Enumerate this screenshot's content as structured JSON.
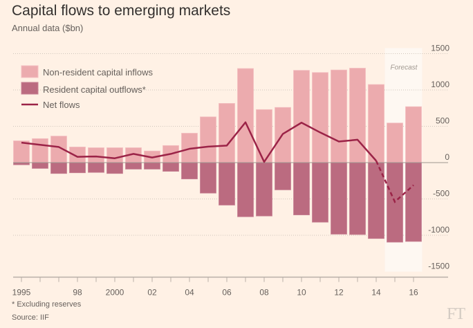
{
  "chart_data": {
    "type": "bar",
    "title": "Capital flows to emerging markets",
    "subtitle": "Annual data ($bn)",
    "x": [
      1995,
      1996,
      1997,
      1998,
      1999,
      2000,
      2001,
      2002,
      2003,
      2004,
      2005,
      2006,
      2007,
      2008,
      2009,
      2010,
      2011,
      2012,
      2013,
      2014,
      2015,
      2016
    ],
    "x_tick_labels": [
      {
        "year": 1995,
        "label": "1995"
      },
      {
        "year": 1998,
        "label": "98"
      },
      {
        "year": 2000,
        "label": "2000"
      },
      {
        "year": 2002,
        "label": "02"
      },
      {
        "year": 2004,
        "label": "04"
      },
      {
        "year": 2006,
        "label": "06"
      },
      {
        "year": 2008,
        "label": "08"
      },
      {
        "year": 2010,
        "label": "10"
      },
      {
        "year": 2012,
        "label": "12"
      },
      {
        "year": 2014,
        "label": "14"
      },
      {
        "year": 2016,
        "label": "16"
      }
    ],
    "y_ticks": [
      "1500",
      "1000",
      "500",
      "0",
      "-500",
      "-1000",
      "-1500"
    ],
    "ylim": [
      -1500,
      1500
    ],
    "grid": true,
    "legend_position": "top-left",
    "forecast_label": "Forecast",
    "forecast_years": [
      2015,
      2016
    ],
    "series": [
      {
        "name": "Non-resident capital inflows",
        "kind": "bar",
        "color": "#ecabae",
        "values": [
          300,
          330,
          365,
          215,
          205,
          205,
          205,
          160,
          235,
          405,
          630,
          815,
          1295,
          730,
          760,
          1270,
          1240,
          1275,
          1300,
          1075,
          545,
          770
        ]
      },
      {
        "name": "Resident capital outflows*",
        "kind": "bar",
        "color": "#bb6b80",
        "values": [
          -30,
          -80,
          -150,
          -140,
          -135,
          -150,
          -90,
          -90,
          -120,
          -225,
          -420,
          -585,
          -745,
          -735,
          -375,
          -720,
          -820,
          -985,
          -990,
          -1045,
          -1095,
          -1085
        ]
      },
      {
        "name": "Net flows",
        "kind": "line",
        "color": "#9b2347",
        "values": [
          275,
          245,
          215,
          80,
          85,
          60,
          120,
          70,
          120,
          190,
          220,
          235,
          555,
          10,
          395,
          550,
          415,
          290,
          315,
          25,
          -540,
          -310
        ]
      }
    ]
  },
  "footnotes": [
    "* Excluding reserves",
    "Source: IIF"
  ],
  "logo": "FT"
}
